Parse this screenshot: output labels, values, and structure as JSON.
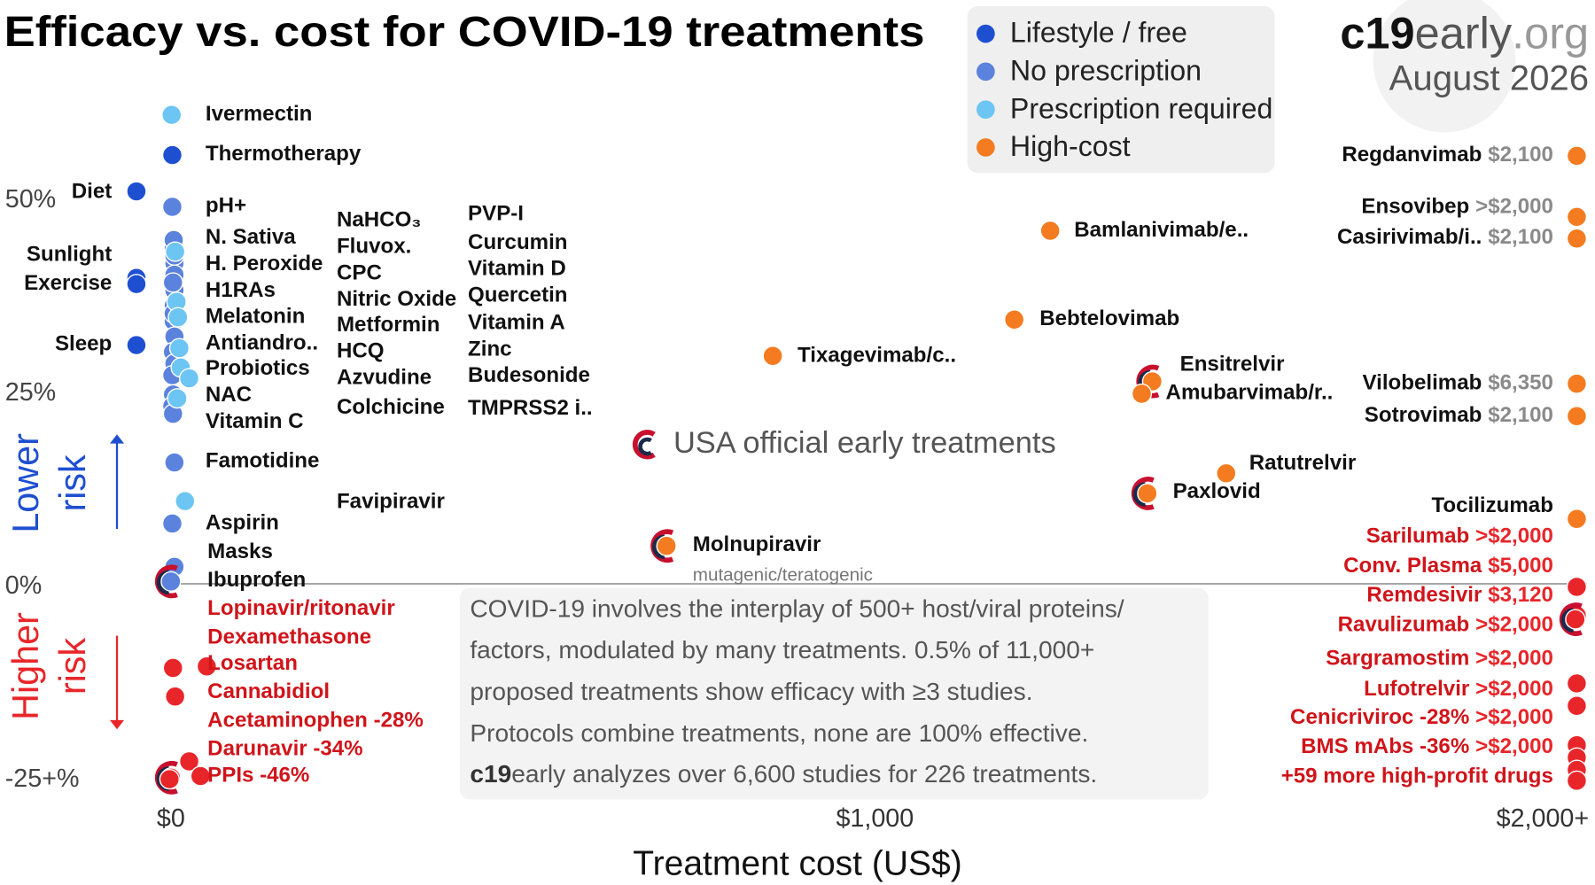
{
  "chart_data": {
    "type": "scatter",
    "title": "Efficacy vs. cost for COVID-19 treatments",
    "brand": [
      "c19",
      "early",
      ".org"
    ],
    "date": "August 2026",
    "xlabel": "Treatment cost (US$)",
    "lower_risk": [
      "Lower",
      "risk"
    ],
    "higher_risk": [
      "Higher",
      "risk"
    ],
    "official_label": "USA official early treatments",
    "side_note": "mutagenic/teratogenic",
    "note": [
      "COVID-19 involves the interplay of 500+ host/viral proteins/",
      "factors, modulated by many treatments. 0.5% of 11,000+",
      "proposed treatments show efficacy with ≥3 studies.",
      "Protocols combine treatments, none are 100% effective."
    ],
    "note_brand": "c19",
    "note_last": "early analyzes over 6,600 studies for 226 treatments.",
    "xlim": [
      -60,
      2020
    ],
    "ylim": [
      -27,
      62
    ],
    "xticks": [
      {
        "value": 0,
        "label": "$0"
      },
      {
        "value": 1000,
        "label": "$1,000"
      },
      {
        "value": 2000,
        "label": "$2,000+"
      }
    ],
    "yticks": [
      {
        "value": 50,
        "label": "50%"
      },
      {
        "value": 25,
        "label": "25%"
      },
      {
        "value": 0,
        "label": "0%"
      },
      {
        "value": -25,
        "label": "-25+%"
      }
    ],
    "zero_line": true,
    "series": [
      {
        "name": "Lifestyle / free",
        "color": "#1f4fd1",
        "labels": [
          "Diet",
          "Sunlight",
          "Exercise",
          "Sleep",
          "Thermotherapy"
        ],
        "x": [
          -49,
          -49,
          -49,
          -49,
          2
        ],
        "values": [
          50.8,
          39.6,
          38.8,
          30.9,
          55.5
        ],
        "official": []
      },
      {
        "name": "No prescription",
        "color": "#5b82dd",
        "labels": [
          "pH+",
          "N. Sativa",
          "H. Peroxide",
          "H1RAs",
          "Melatonin",
          "Antiandro..",
          "Probiotics",
          "NAC",
          "Vitamin C",
          "NaHCO₃",
          "CPC",
          "Nitric Oxide",
          "PVP-I",
          "Curcumin",
          "Vitamin D",
          "Quercetin",
          "Vitamin A",
          "Zinc",
          "Famotidine",
          "Aspirin",
          "Masks",
          "Ibuprofen"
        ],
        "x": [
          2,
          4,
          5,
          5,
          5,
          4,
          4,
          5,
          3,
          5,
          2,
          3,
          2,
          3,
          4,
          5,
          3,
          4,
          5,
          2,
          5,
          0
        ],
        "values": [
          48.8,
          43.5,
          41.5,
          40,
          38,
          36,
          34,
          32,
          30,
          28.5,
          27,
          24.5,
          23,
          22,
          44.5,
          42.5,
          39,
          35,
          15.7,
          7.8,
          2.2,
          0.3
        ],
        "official": [
          21
        ]
      },
      {
        "name": "Prescription required",
        "color": "#6cc5f2",
        "labels": [
          "Ivermectin",
          "Fluvox.",
          "Metformin",
          "HCQ",
          "Azvudine",
          "Colchicine",
          "Budesonide",
          "TMPRSS2 i..",
          "Favipiravir"
        ],
        "x": [
          1,
          6,
          8,
          10,
          12,
          14,
          26,
          9,
          20
        ],
        "values": [
          60.7,
          43,
          36.5,
          34.5,
          30.5,
          28,
          26.6,
          24,
          10.7
        ],
        "official": []
      },
      {
        "name": "High-cost",
        "color": "#f47b20",
        "labels": [
          "Regdanvimab",
          "Ensovibep",
          "Casirivimab/i..",
          "Vilobelimab",
          "Sotrovimab",
          "Tocilizumab",
          "Bamlanivimab/e..",
          "Bebtelovimab",
          "Tixagevimab/c..",
          "Ensitrelvir",
          "Amubarvimab/r..",
          "Ratutrelvir",
          "Paxlovid",
          "Molnupiravir"
        ],
        "price_labels": [
          "$2,100",
          ">$2,000",
          "$2,100",
          "$6,350",
          "$2,100",
          null,
          null,
          null,
          null,
          null,
          null,
          null,
          null,
          null
        ],
        "x": [
          1997,
          1997,
          1997,
          1997,
          1997,
          1997,
          1249,
          1198,
          855,
          1394,
          1379,
          1499,
          1387,
          704
        ],
        "values": [
          55.4,
          47.5,
          44.7,
          25.9,
          21.7,
          8.4,
          45.7,
          34.2,
          29.5,
          26.2,
          24.6,
          14.3,
          11.7,
          4.9
        ],
        "official": [
          9,
          12,
          13
        ]
      },
      {
        "color": "#e8262a",
        "labels": [
          "Lopinavir/ritonavir",
          "Dexamethasone",
          "Losartan",
          "Cannabidiol",
          "Acetaminophen -28%",
          "Darunavir -34%",
          "PPIs -46%",
          "Sarilumab",
          "Conv. Plasma",
          "Remdesivir",
          "Ravulizumab",
          "Sargramostim",
          "Lufotrelvir",
          "Cenicriviroc -28%",
          "BMS mAbs -36%",
          "+59 more high-profit drugs"
        ],
        "price_labels": [
          null,
          null,
          null,
          null,
          null,
          null,
          null,
          ">$2,000",
          "$5,000",
          "$3,120",
          ">$2,000",
          ">$2,000",
          ">$2,000",
          ">$2,000",
          ">$2,000",
          null
        ],
        "x": [
          3,
          51,
          6,
          26,
          0,
          42,
          -2,
          1997,
          1997,
          1995,
          1997,
          1997,
          1997,
          1997,
          1997,
          1997
        ],
        "values": [
          -10.9,
          -10.7,
          -14.6,
          -23,
          -25.1,
          -24.9,
          -25.3,
          -0.4,
          -4.1,
          -4.6,
          -12.9,
          -15.8,
          -20.9,
          -22.5,
          -24.1,
          -25.5
        ],
        "official": [
          4,
          9
        ]
      }
    ]
  }
}
